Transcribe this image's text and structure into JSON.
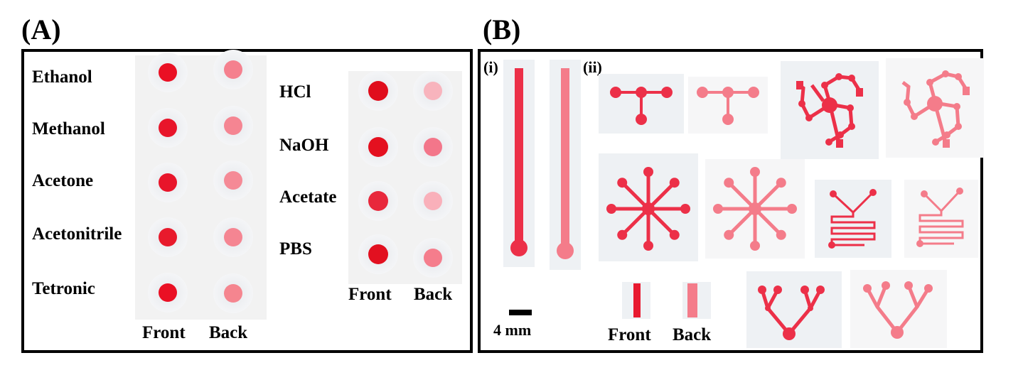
{
  "panel_a": {
    "label": "(A)",
    "left_solvents": [
      "Ethanol",
      "Methanol",
      "Acetone",
      "Acetonitrile",
      "Tetronic"
    ],
    "right_solvents": [
      "HCl",
      "NaOH",
      "Acetate",
      "PBS"
    ],
    "front_label": "Front",
    "back_label": "Back"
  },
  "panel_b": {
    "label": "(B)",
    "sub_i": "(i)",
    "sub_ii": "(ii)",
    "scale_bar": "4 mm",
    "front_label": "Front",
    "back_label": "Back"
  },
  "colors": {
    "front_red": "#e8152a",
    "back_pink": "#f5808e",
    "channel_front": "#ec3048",
    "channel_back": "#f47c8a"
  }
}
